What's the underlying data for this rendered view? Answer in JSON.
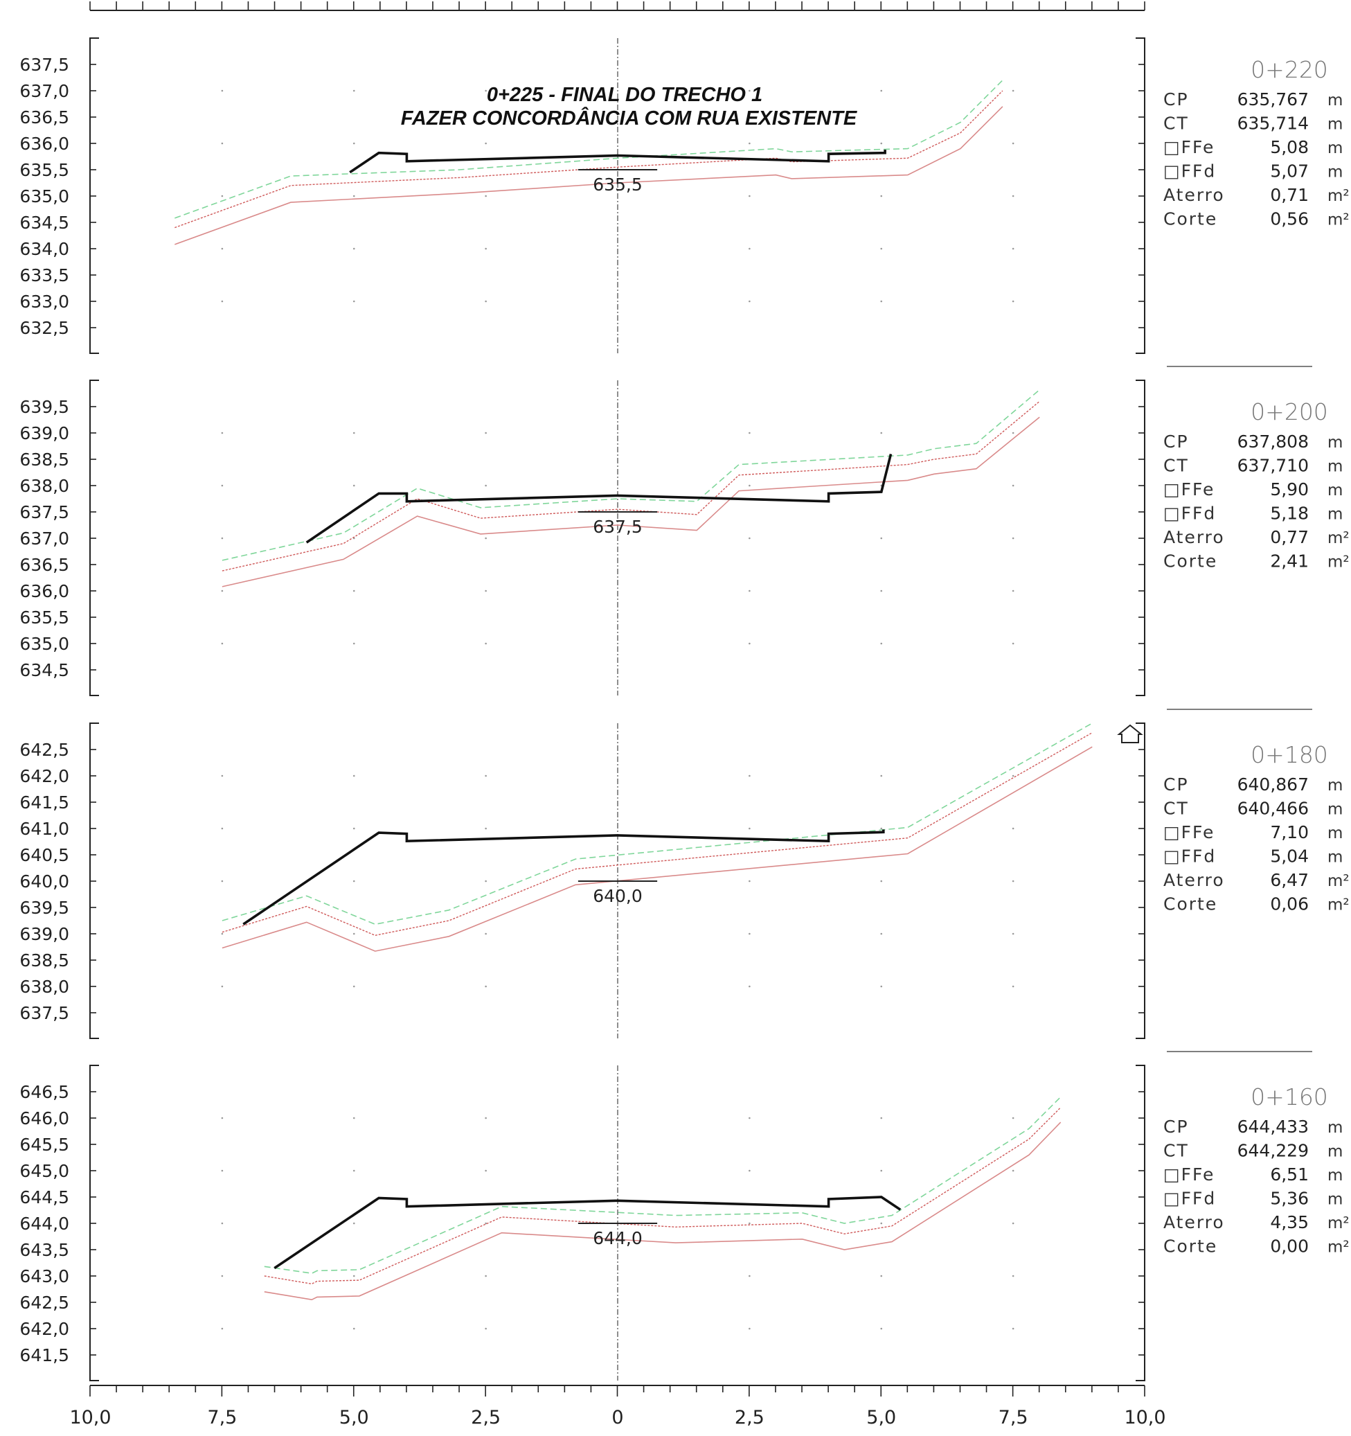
{
  "title": {
    "line1": "0+225 - FINAL DO TRECHO 1",
    "line2": "FAZER CONCORDÂNCIA COM RUA EXISTENTE"
  },
  "colors": {
    "platform": "#111111",
    "terrain_dashed_green": "#7fd69a",
    "terrain_dotted_red": "#cf5a5a",
    "terrain_solid_red": "#d98a8a",
    "axis": "#222222"
  },
  "x_axis": {
    "ticks": [
      "10,0",
      "7,5",
      "5,0",
      "2,5",
      "0",
      "2,5",
      "5,0",
      "7,5",
      "10,0"
    ]
  },
  "info_labels": {
    "cp": "CP",
    "ct": "CT",
    "offe": "□FFe",
    "offd": "□FFd",
    "aterro": "Aterro",
    "corte": "Corte",
    "unit_m": "m",
    "unit_m2": "m²"
  },
  "sections": [
    {
      "station": "0+220",
      "y_ticks": [
        "637,5",
        "637,0",
        "636,5",
        "636,0",
        "635,5",
        "635,0",
        "634,5",
        "634,0",
        "633,5",
        "633,0",
        "632,5"
      ],
      "center_elevation_label": "635,5",
      "cp": "635,767",
      "ct": "635,714",
      "offe": "5,08",
      "offd": "5,07",
      "aterro": "0,71",
      "corte": "0,56",
      "platform": [
        [
          -5.08,
          635.45
        ],
        [
          -4.53,
          635.82
        ],
        [
          -4.0,
          635.8
        ],
        [
          -4.0,
          635.66
        ],
        [
          0,
          635.77
        ],
        [
          4.0,
          635.66
        ],
        [
          4.0,
          635.8
        ],
        [
          5.07,
          635.82
        ],
        [
          5.07,
          635.88
        ]
      ],
      "terrain_green": [
        [
          -8.4,
          634.58
        ],
        [
          -6.2,
          635.38
        ],
        [
          -3.0,
          635.5
        ],
        [
          0,
          635.72
        ],
        [
          3.0,
          635.9
        ],
        [
          3.3,
          635.84
        ],
        [
          5.5,
          635.9
        ],
        [
          6.5,
          636.4
        ],
        [
          7.3,
          637.2
        ]
      ],
      "terrain_dotted": [
        [
          -8.4,
          634.4
        ],
        [
          -6.2,
          635.2
        ],
        [
          -3.0,
          635.35
        ],
        [
          0,
          635.55
        ],
        [
          3.0,
          635.72
        ],
        [
          3.3,
          635.65
        ],
        [
          5.5,
          635.72
        ],
        [
          6.5,
          636.2
        ],
        [
          7.3,
          637.0
        ]
      ],
      "terrain_solid": [
        [
          -8.4,
          634.08
        ],
        [
          -6.2,
          634.88
        ],
        [
          -3.0,
          635.05
        ],
        [
          0,
          635.25
        ],
        [
          3.0,
          635.4
        ],
        [
          3.3,
          635.33
        ],
        [
          5.5,
          635.4
        ],
        [
          6.5,
          635.9
        ],
        [
          7.3,
          636.7
        ]
      ]
    },
    {
      "station": "0+200",
      "y_ticks": [
        "639,5",
        "639,0",
        "638,5",
        "638,0",
        "637,5",
        "637,0",
        "636,5",
        "636,0",
        "635,5",
        "635,0",
        "634,5"
      ],
      "center_elevation_label": "637,5",
      "cp": "637,808",
      "ct": "637,710",
      "offe": "5,90",
      "offd": "5,18",
      "aterro": "0,77",
      "corte": "2,41",
      "platform": [
        [
          -5.9,
          636.92
        ],
        [
          -4.53,
          637.85
        ],
        [
          -4.0,
          637.85
        ],
        [
          -4.0,
          637.7
        ],
        [
          0,
          637.81
        ],
        [
          4.0,
          637.7
        ],
        [
          4.0,
          637.85
        ],
        [
          5.0,
          637.88
        ],
        [
          5.18,
          638.6
        ]
      ],
      "terrain_green": [
        [
          -7.5,
          636.58
        ],
        [
          -5.2,
          637.1
        ],
        [
          -3.8,
          637.95
        ],
        [
          -2.6,
          637.58
        ],
        [
          0,
          637.75
        ],
        [
          1.5,
          637.7
        ],
        [
          2.3,
          638.4
        ],
        [
          5.5,
          638.58
        ],
        [
          6.0,
          638.7
        ],
        [
          6.8,
          638.8
        ],
        [
          8.0,
          639.82
        ]
      ],
      "terrain_dotted": [
        [
          -7.5,
          636.38
        ],
        [
          -5.2,
          636.9
        ],
        [
          -3.8,
          637.75
        ],
        [
          -2.6,
          637.38
        ],
        [
          0,
          637.55
        ],
        [
          1.5,
          637.45
        ],
        [
          2.3,
          638.2
        ],
        [
          5.5,
          638.4
        ],
        [
          6.0,
          638.5
        ],
        [
          6.8,
          638.6
        ],
        [
          8.0,
          639.6
        ]
      ],
      "terrain_solid": [
        [
          -7.5,
          636.08
        ],
        [
          -5.2,
          636.6
        ],
        [
          -3.8,
          637.42
        ],
        [
          -2.6,
          637.08
        ],
        [
          0,
          637.25
        ],
        [
          1.5,
          637.15
        ],
        [
          2.3,
          637.9
        ],
        [
          5.5,
          638.1
        ],
        [
          6.0,
          638.22
        ],
        [
          6.8,
          638.32
        ],
        [
          8.0,
          639.3
        ]
      ]
    },
    {
      "station": "0+180",
      "y_ticks": [
        "642,5",
        "642,0",
        "641,5",
        "641,0",
        "640,5",
        "640,0",
        "639,5",
        "639,0",
        "638,5",
        "638,0",
        "637,5"
      ],
      "center_elevation_label": "640,0",
      "cp": "640,867",
      "ct": "640,466",
      "offe": "7,10",
      "offd": "5,04",
      "aterro": "6,47",
      "corte": "0,06",
      "platform": [
        [
          -7.1,
          639.18
        ],
        [
          -4.53,
          640.92
        ],
        [
          -4.0,
          640.9
        ],
        [
          -4.0,
          640.76
        ],
        [
          0,
          640.87
        ],
        [
          4.0,
          640.76
        ],
        [
          4.0,
          640.9
        ],
        [
          5.04,
          640.93
        ],
        [
          5.04,
          640.98
        ]
      ],
      "terrain_green": [
        [
          -7.5,
          639.25
        ],
        [
          -5.9,
          639.72
        ],
        [
          -4.6,
          639.18
        ],
        [
          -3.2,
          639.45
        ],
        [
          -0.8,
          640.42
        ],
        [
          5.5,
          641.02
        ],
        [
          9.0,
          643.0
        ]
      ],
      "terrain_dotted": [
        [
          -7.5,
          639.03
        ],
        [
          -5.9,
          639.52
        ],
        [
          -4.6,
          638.97
        ],
        [
          -3.2,
          639.25
        ],
        [
          -0.8,
          640.23
        ],
        [
          5.5,
          640.82
        ],
        [
          9.0,
          642.82
        ]
      ],
      "terrain_solid": [
        [
          -7.5,
          638.73
        ],
        [
          -5.9,
          639.22
        ],
        [
          -4.6,
          638.67
        ],
        [
          -3.2,
          638.95
        ],
        [
          -0.8,
          639.93
        ],
        [
          5.5,
          640.52
        ],
        [
          9.0,
          642.55
        ]
      ]
    },
    {
      "station": "0+160",
      "y_ticks": [
        "646,5",
        "646,0",
        "645,5",
        "645,0",
        "644,5",
        "644,0",
        "643,5",
        "643,0",
        "642,5",
        "642,0",
        "641,5"
      ],
      "center_elevation_label": "644,0",
      "cp": "644,433",
      "ct": "644,229",
      "offe": "6,51",
      "offd": "5,36",
      "aterro": "4,35",
      "corte": "0,00",
      "platform": [
        [
          -6.51,
          643.15
        ],
        [
          -4.53,
          644.48
        ],
        [
          -4.0,
          644.46
        ],
        [
          -4.0,
          644.32
        ],
        [
          0,
          644.43
        ],
        [
          4.0,
          644.32
        ],
        [
          4.0,
          644.46
        ],
        [
          5.0,
          644.5
        ],
        [
          5.36,
          644.26
        ]
      ],
      "terrain_green": [
        [
          -6.7,
          643.18
        ],
        [
          -5.8,
          643.05
        ],
        [
          -5.7,
          643.1
        ],
        [
          -4.9,
          643.12
        ],
        [
          -2.2,
          644.32
        ],
        [
          1.1,
          644.15
        ],
        [
          3.5,
          644.2
        ],
        [
          4.3,
          644.0
        ],
        [
          5.2,
          644.15
        ],
        [
          7.8,
          645.8
        ],
        [
          8.4,
          646.4
        ]
      ],
      "terrain_dotted": [
        [
          -6.7,
          643.0
        ],
        [
          -5.8,
          642.85
        ],
        [
          -5.7,
          642.9
        ],
        [
          -4.9,
          642.92
        ],
        [
          -2.2,
          644.12
        ],
        [
          1.1,
          643.93
        ],
        [
          3.5,
          644.0
        ],
        [
          4.3,
          643.8
        ],
        [
          5.2,
          643.95
        ],
        [
          7.8,
          645.6
        ],
        [
          8.4,
          646.2
        ]
      ],
      "terrain_solid": [
        [
          -6.7,
          642.7
        ],
        [
          -5.8,
          642.55
        ],
        [
          -5.7,
          642.6
        ],
        [
          -4.9,
          642.62
        ],
        [
          -2.2,
          643.82
        ],
        [
          1.1,
          643.63
        ],
        [
          3.5,
          643.7
        ],
        [
          4.3,
          643.5
        ],
        [
          5.2,
          643.65
        ],
        [
          7.8,
          645.3
        ],
        [
          8.4,
          645.92
        ]
      ]
    }
  ]
}
